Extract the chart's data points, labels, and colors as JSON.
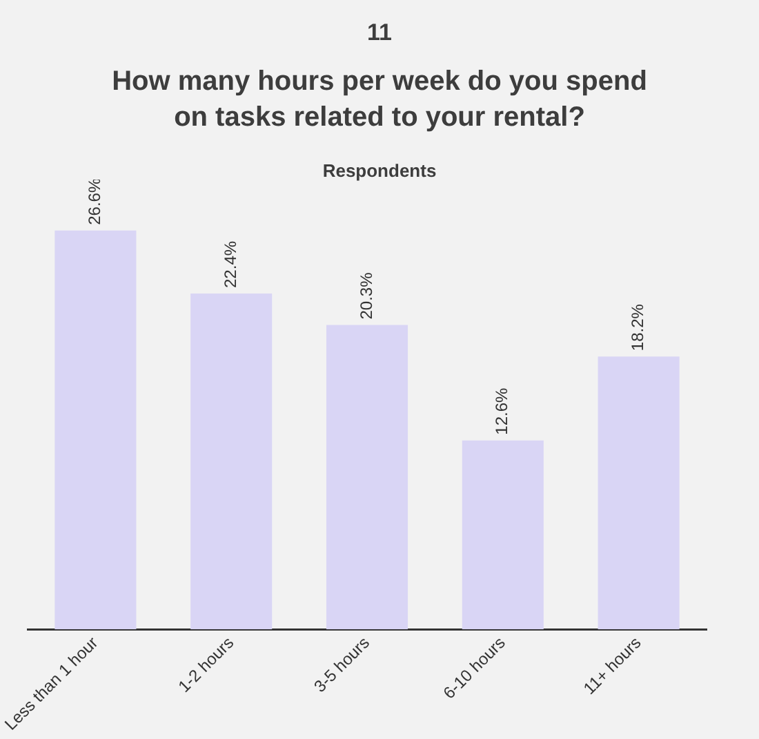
{
  "chart_data": {
    "type": "bar",
    "title": "How many hours per week do you spend on tasks related to your rental?",
    "subtitle": "Respondents",
    "annotations": [
      "11"
    ],
    "categories": [
      "Less than 1 hour",
      "1-2 hours",
      "3-5 hours",
      "6-10 hours",
      "11+ hours"
    ],
    "values": [
      26.6,
      22.4,
      20.3,
      12.6,
      18.2
    ],
    "color": "#d9d5f5",
    "value_labels": [
      "26.6%",
      "22.4%",
      "20.3%",
      "12.6%",
      "18.2%"
    ],
    "grid": false,
    "legend": false
  }
}
